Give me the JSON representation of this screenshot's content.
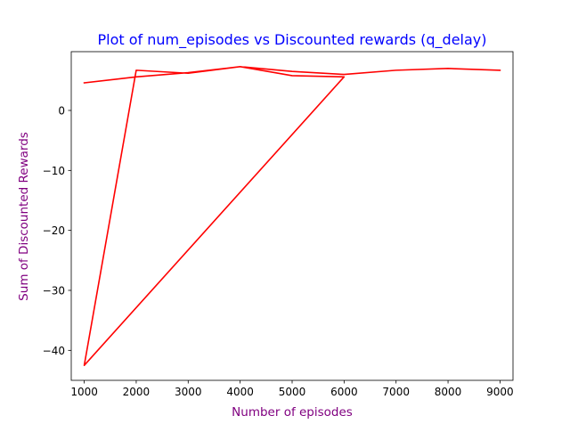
{
  "chart_data": {
    "type": "line",
    "title": "Plot of num_episodes vs Discounted rewards (q_delay)",
    "xlabel": "Number of episodes",
    "ylabel": "Sum of Discounted Rewards",
    "xlim": [
      750,
      9250
    ],
    "ylim": [
      -45,
      9.8
    ],
    "xticks": [
      1000,
      2000,
      3000,
      4000,
      5000,
      6000,
      7000,
      8000,
      9000
    ],
    "yticks": [
      -40,
      -30,
      -20,
      -10,
      0
    ],
    "xtick_labels": [
      "1000",
      "2000",
      "3000",
      "4000",
      "5000",
      "6000",
      "7000",
      "8000",
      "9000"
    ],
    "ytick_labels": [
      "−40",
      "−30",
      "−20",
      "−10",
      "0"
    ],
    "grid": false,
    "series": [
      {
        "color": "#ff0000",
        "x": [
          1000,
          2000,
          3000,
          4000,
          5000,
          6000,
          1000,
          2000,
          3000,
          4000,
          5000,
          6000,
          7000,
          8000,
          9000
        ],
        "y": [
          4.6,
          5.6,
          6.3,
          7.3,
          5.8,
          5.6,
          -42.5,
          6.7,
          6.2,
          7.3,
          6.5,
          6.0,
          6.7,
          7.0,
          6.7
        ]
      }
    ],
    "colors": {
      "title": "#0000ff",
      "axis_labels": "#800080",
      "axes": "#000000",
      "text": "#000000"
    }
  }
}
